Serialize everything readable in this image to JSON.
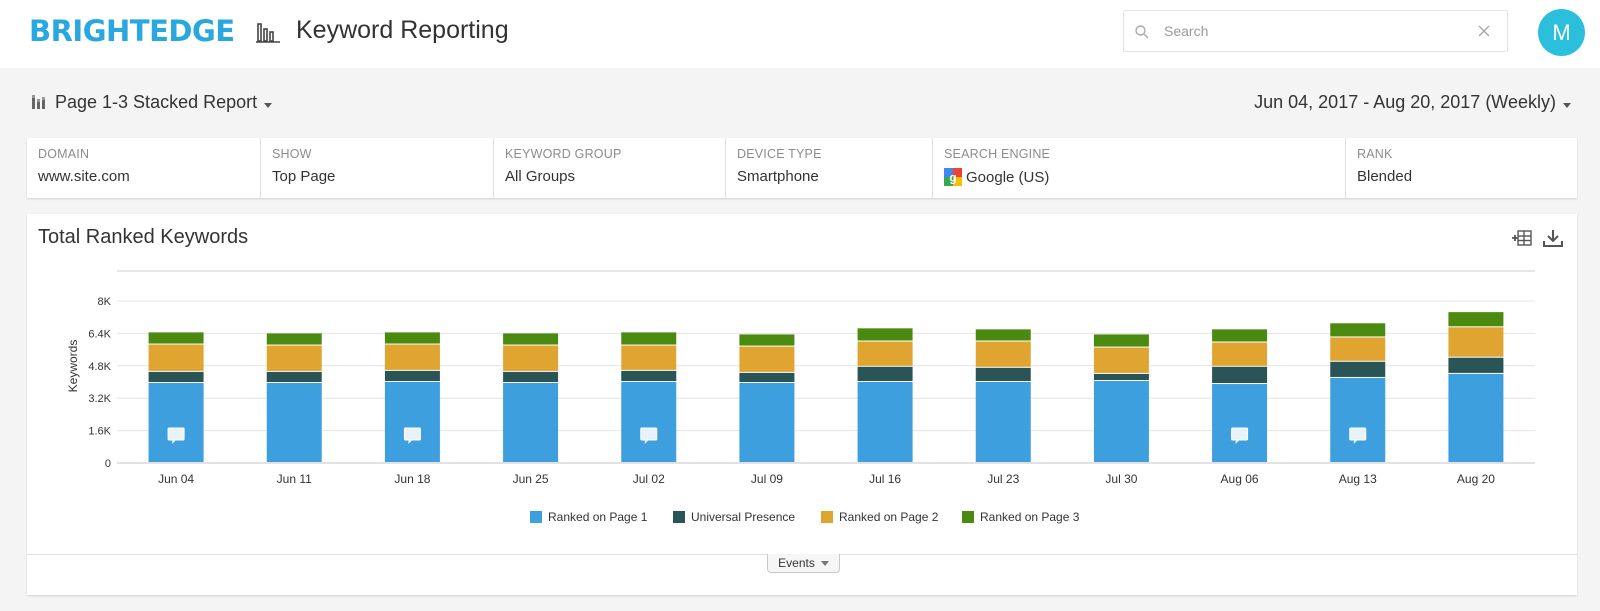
{
  "header": {
    "logo": "BRIGHTEDGE",
    "page_title": "Keyword Reporting",
    "search_placeholder": "Search",
    "avatar_initial": "M"
  },
  "report": {
    "selector_label": "Page 1-3 Stacked Report",
    "date_range": "Jun 04, 2017 - Aug 20, 2017 (Weekly)"
  },
  "filters": [
    {
      "label": "DOMAIN",
      "value": "www.site.com"
    },
    {
      "label": "SHOW",
      "value": "Top Page"
    },
    {
      "label": "KEYWORD GROUP",
      "value": "All Groups"
    },
    {
      "label": "DEVICE TYPE",
      "value": "Smartphone"
    },
    {
      "label": "SEARCH ENGINE",
      "value": "Google (US)"
    },
    {
      "label": "RANK",
      "value": "Blended"
    }
  ],
  "card": {
    "title": "Total Ranked Keywords",
    "events_label": "Events"
  },
  "icons": {
    "page": "bar-chart-icon",
    "search": "search-icon",
    "clear": "close-icon",
    "report": "stacked-bar-icon",
    "search_engine": "google-icon",
    "add_widget": "add-table-icon",
    "download": "download-icon",
    "annotation": "comment-icon"
  },
  "colors": {
    "brand": "#29a8e0",
    "avatar": "#2bbfdb",
    "page1": "#3d9fdd",
    "universal": "#2a5455",
    "page2": "#e0a431",
    "page3": "#4b8a10"
  },
  "chart_data": {
    "type": "bar",
    "stacked": true,
    "categories": [
      "Jun 04",
      "Jun 11",
      "Jun 18",
      "Jun 25",
      "Jul 02",
      "Jul 09",
      "Jul 16",
      "Jul 23",
      "Jul 30",
      "Aug 06",
      "Aug 13",
      "Aug 20"
    ],
    "series": [
      {
        "name": "Ranked on Page 1",
        "color": "#3d9fdd",
        "values": [
          3950,
          3950,
          4000,
          3950,
          4000,
          3950,
          4000,
          4000,
          4050,
          3900,
          4200,
          4400
        ]
      },
      {
        "name": "Universal Presence",
        "color": "#2a5455",
        "values": [
          550,
          550,
          550,
          550,
          550,
          500,
          750,
          700,
          350,
          850,
          800,
          800
        ]
      },
      {
        "name": "Ranked on Page 2",
        "color": "#e0a431",
        "values": [
          1350,
          1300,
          1300,
          1300,
          1250,
          1300,
          1250,
          1300,
          1300,
          1200,
          1200,
          1500
        ]
      },
      {
        "name": "Ranked on Page 3",
        "color": "#4b8a10",
        "values": [
          600,
          600,
          600,
          600,
          650,
          600,
          650,
          600,
          650,
          650,
          700,
          750
        ]
      }
    ],
    "ylabel": "Keywords",
    "yticks": [
      "0",
      "1.6K",
      "3.2K",
      "4.8K",
      "6.4K",
      "8K"
    ],
    "ylim": [
      0,
      8000
    ],
    "annotation_markers": [
      0,
      2,
      4,
      9,
      10
    ],
    "grid": true,
    "legend_position": "bottom"
  }
}
